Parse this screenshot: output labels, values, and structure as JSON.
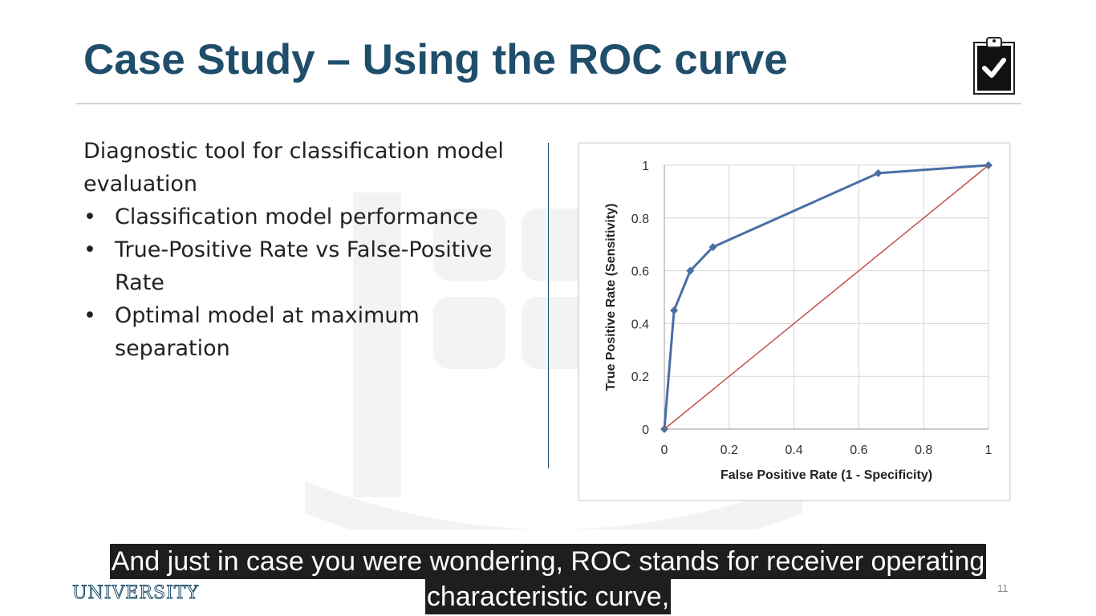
{
  "slide": {
    "title": "Case Study – Using the ROC curve",
    "intro": "Diagnostic tool for classification model evaluation",
    "bullets": [
      "Classification model performance",
      "True-Positive Rate vs False-Positive Rate",
      "Optimal model at maximum separation"
    ],
    "page_number": "11",
    "footer_logo_text": "UNIVERSITY",
    "icon": "clipboard-check-icon"
  },
  "captions": {
    "line1": "And just in case you were wondering, ROC stands for receiver operating",
    "line2": "characteristic curve,"
  },
  "colors": {
    "title": "#1f4e6b",
    "roc_line": "#4a6fa5",
    "diagonal": "#c0504d"
  },
  "chart_data": {
    "type": "line",
    "xlabel": "False Positive Rate  (1 - Specificity)",
    "ylabel": "True Positive Rate  (Sensitivity)",
    "xlim": [
      0,
      1
    ],
    "ylim": [
      0,
      1
    ],
    "x_ticks": [
      "0",
      "0.2",
      "0.4",
      "0.6",
      "0.8",
      "1"
    ],
    "y_ticks": [
      "0",
      "0.2",
      "0.4",
      "0.6",
      "0.8",
      "1"
    ],
    "grid": true,
    "series": [
      {
        "x": [
          0,
          0.03,
          0.08,
          0.15,
          0.66,
          1
        ],
        "y": [
          0,
          0.45,
          0.6,
          0.69,
          0.97,
          1
        ],
        "color": "#4a6fa5",
        "markers": true
      },
      {
        "x": [
          0,
          1
        ],
        "y": [
          0,
          1
        ],
        "color": "#c0504d",
        "markers": false
      }
    ]
  }
}
